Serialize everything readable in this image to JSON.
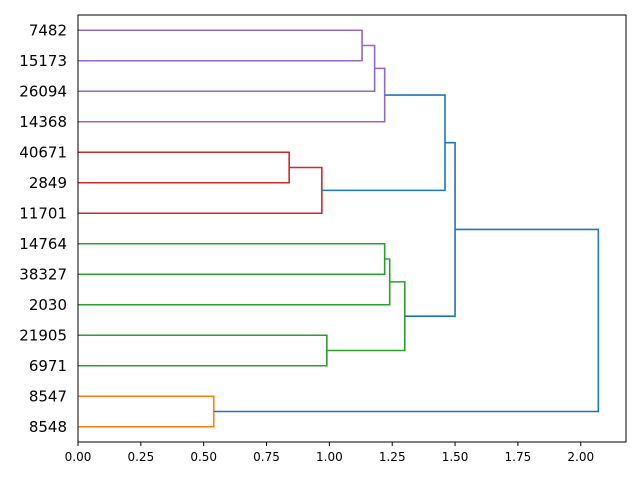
{
  "chart_data": {
    "type": "dendrogram",
    "orientation": "left",
    "title": "",
    "xlabel": "",
    "ylabel": "",
    "xlim": [
      0,
      2.18
    ],
    "xticks": [
      0.0,
      0.25,
      0.5,
      0.75,
      1.0,
      1.25,
      1.5,
      1.75,
      2.0
    ],
    "xtick_labels": [
      "0.00",
      "0.25",
      "0.50",
      "0.75",
      "1.00",
      "1.25",
      "1.50",
      "1.75",
      "2.00"
    ],
    "leaves": [
      "7482",
      "15173",
      "26094",
      "14368",
      "40671",
      "2849",
      "11701",
      "14764",
      "38327",
      "2030",
      "21905",
      "6971",
      "8547",
      "8548"
    ],
    "colors": {
      "purple": "#9467bd",
      "red": "#d62728",
      "green": "#2ca02c",
      "orange": "#ff7f0e",
      "blue": "#1f77b4"
    },
    "merges": [
      {
        "id": "m1",
        "children": [
          "7482",
          "15173"
        ],
        "distance": 1.13,
        "color": "purple"
      },
      {
        "id": "m2",
        "children": [
          "m1",
          "26094"
        ],
        "distance": 1.18,
        "color": "purple"
      },
      {
        "id": "m3",
        "children": [
          "m2",
          "14368"
        ],
        "distance": 1.22,
        "color": "purple"
      },
      {
        "id": "m4",
        "children": [
          "40671",
          "2849"
        ],
        "distance": 0.84,
        "color": "red"
      },
      {
        "id": "m5",
        "children": [
          "m4",
          "11701"
        ],
        "distance": 0.97,
        "color": "red"
      },
      {
        "id": "m6",
        "children": [
          "m3",
          "m5"
        ],
        "distance": 1.46,
        "color": "blue"
      },
      {
        "id": "m7",
        "children": [
          "14764",
          "38327"
        ],
        "distance": 1.22,
        "color": "green"
      },
      {
        "id": "m8",
        "children": [
          "m7",
          "2030"
        ],
        "distance": 1.24,
        "color": "green"
      },
      {
        "id": "m9",
        "children": [
          "21905",
          "6971"
        ],
        "distance": 0.99,
        "color": "green"
      },
      {
        "id": "m10",
        "children": [
          "m8",
          "m9"
        ],
        "distance": 1.3,
        "color": "green"
      },
      {
        "id": "m11",
        "children": [
          "m6",
          "m10"
        ],
        "distance": 1.5,
        "color": "blue"
      },
      {
        "id": "m12",
        "children": [
          "8547",
          "8548"
        ],
        "distance": 0.54,
        "color": "orange"
      },
      {
        "id": "m13",
        "children": [
          "m11",
          "m12"
        ],
        "distance": 2.07,
        "color": "blue"
      }
    ]
  }
}
